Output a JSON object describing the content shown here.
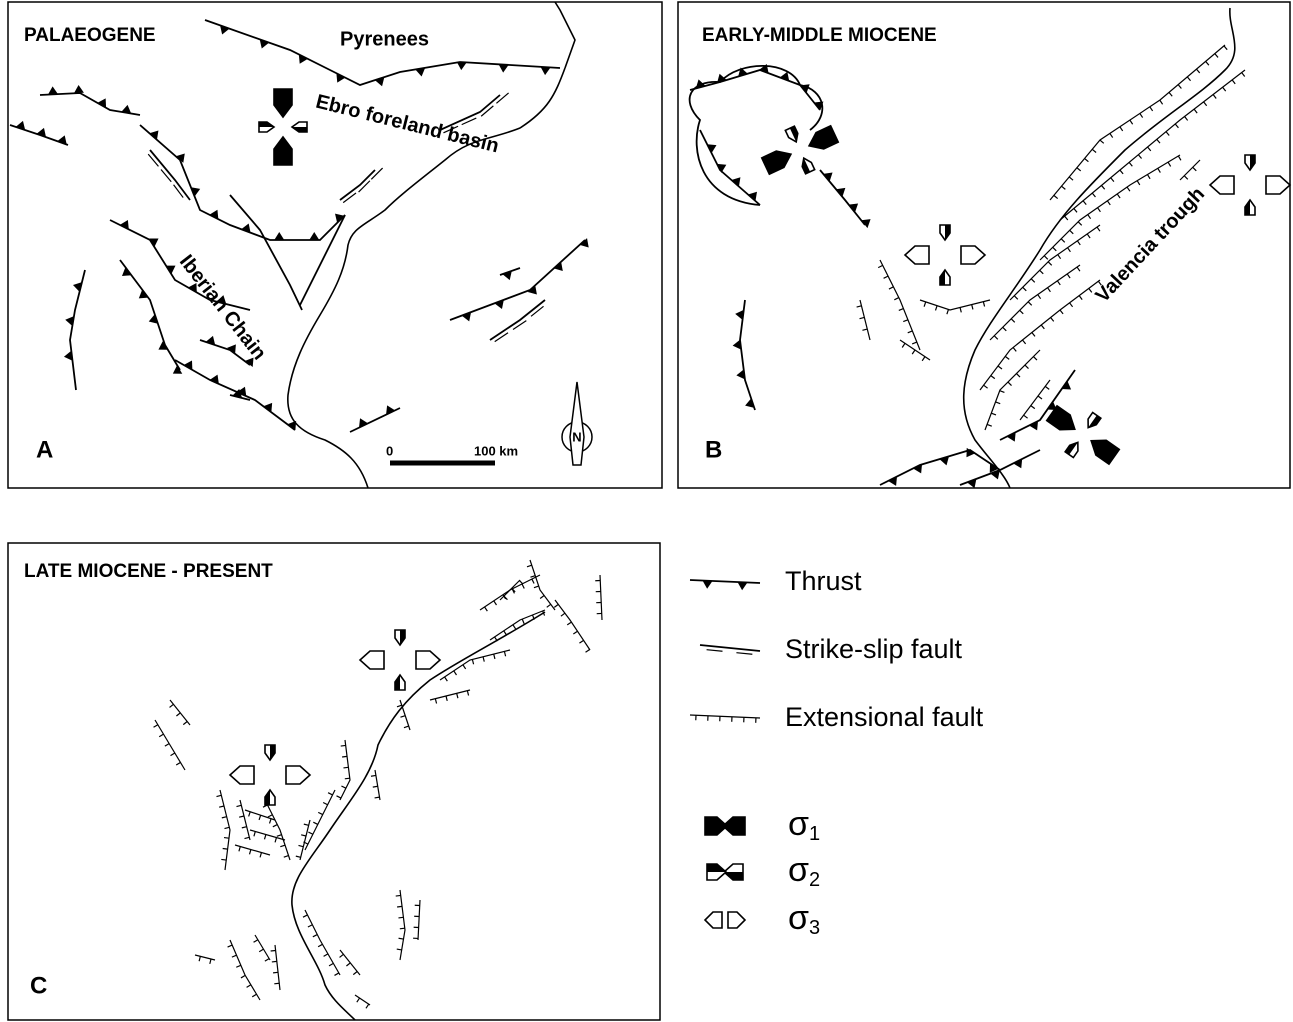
{
  "panels": [
    {
      "title": "PALAEOGENE",
      "letter": "A",
      "labels": [
        "Pyrenees",
        "Ebro foreland basin",
        "Iberian Chain"
      ],
      "scale_bar": {
        "start": "0",
        "end": "100 km"
      },
      "north": "N"
    },
    {
      "title": "EARLY-MIDDLE MIOCENE",
      "letter": "B",
      "labels": [
        "Valencia trough"
      ]
    },
    {
      "title": "LATE MIOCENE - PRESENT",
      "letter": "C"
    }
  ],
  "legend": {
    "faults": [
      "Thrust",
      "Strike-slip fault",
      "Extensional fault"
    ],
    "stress": [
      {
        "symbol": "σ",
        "subscript": "1"
      },
      {
        "symbol": "σ",
        "subscript": "2"
      },
      {
        "symbol": "σ",
        "subscript": "3"
      }
    ]
  }
}
